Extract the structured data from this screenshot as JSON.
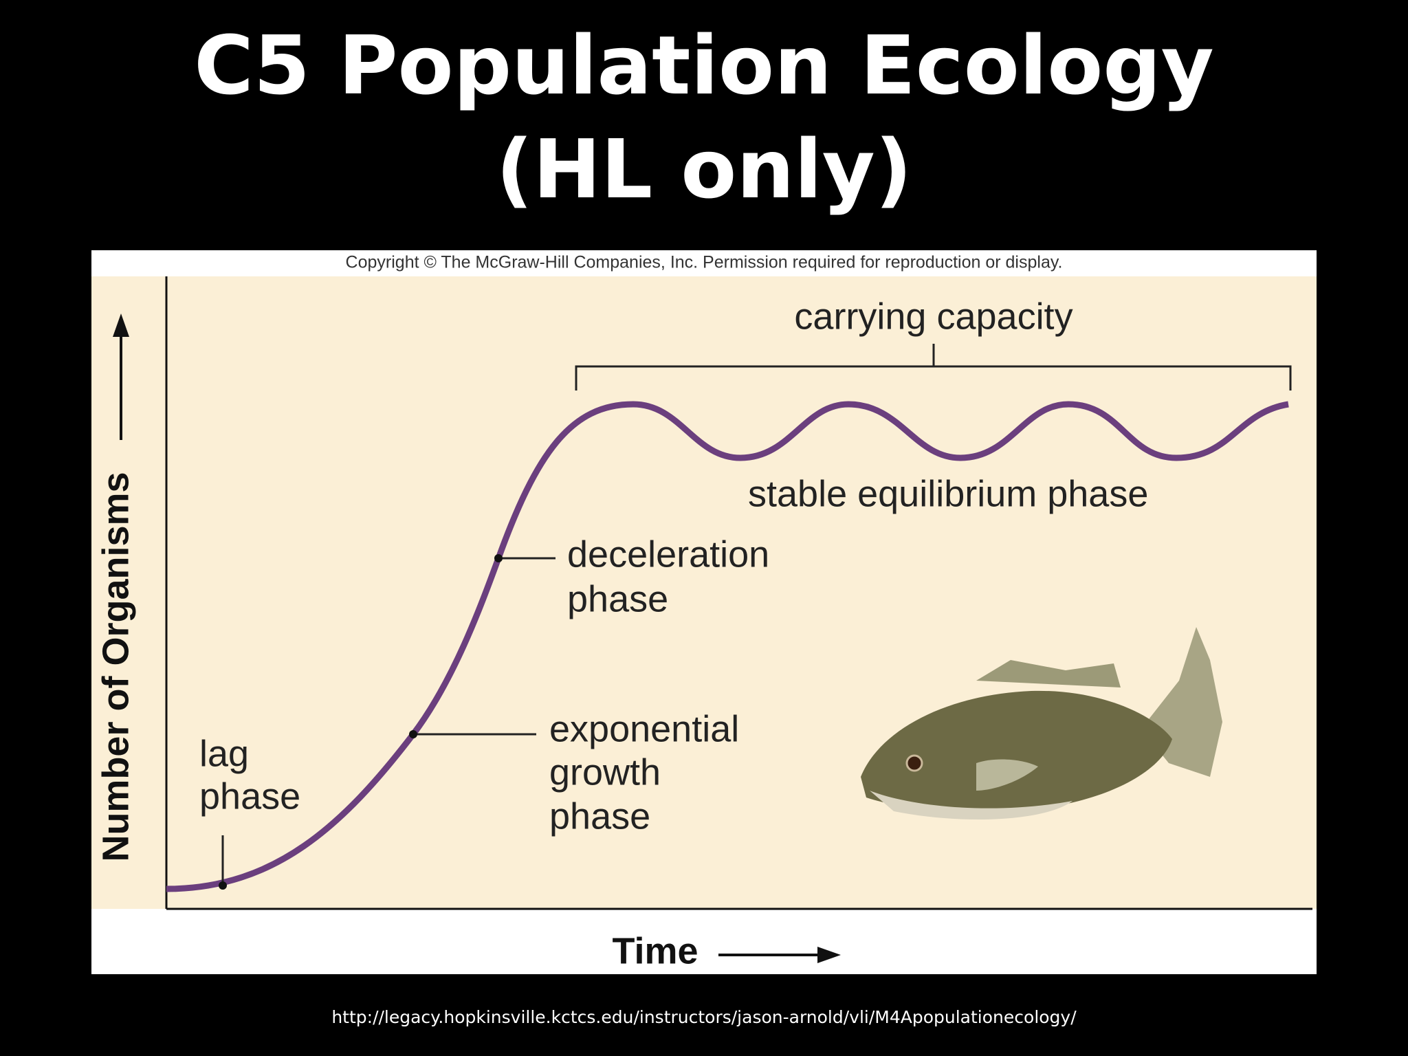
{
  "title": {
    "lines": [
      "C5 Population Ecology",
      "(HL only)"
    ]
  },
  "figure": {
    "copyright": "Copyright © The McGraw-Hill Companies, Inc. Permission required for reproduction or display.",
    "y_axis_label": "Number of Organisms",
    "x_axis_label": "Time",
    "annotations": {
      "carrying_capacity": "carrying capacity",
      "stable_equilibrium": "stable equilibrium phase",
      "deceleration": [
        "deceleration",
        "phase"
      ],
      "exponential": [
        "exponential",
        "growth",
        "phase"
      ],
      "lag": [
        "lag",
        "phase"
      ]
    }
  },
  "source_url": "http://legacy.hopkinsville.kctcs.edu/instructors/jason-arnold/vli/M4Apopulationecology/"
}
